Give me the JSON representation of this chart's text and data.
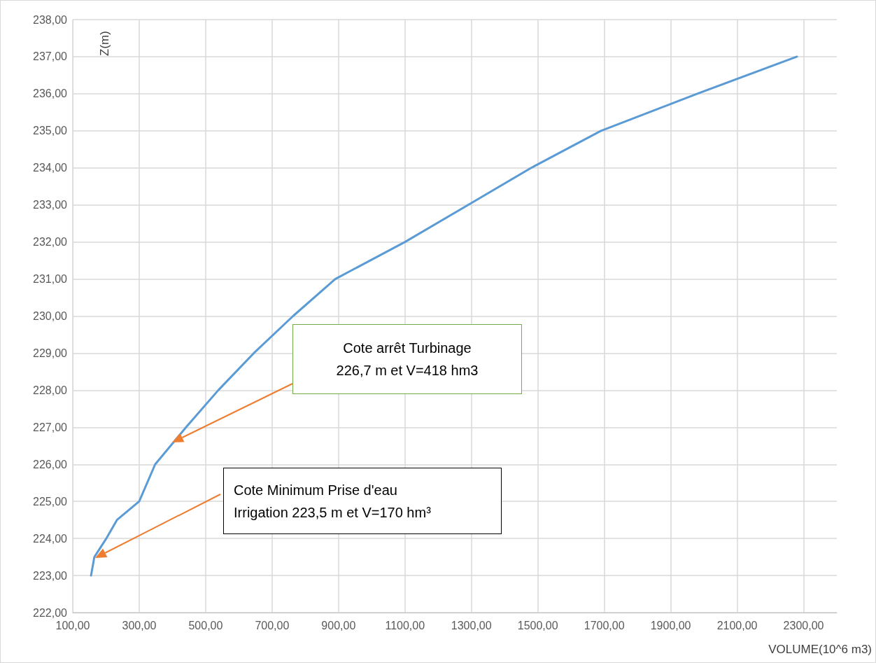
{
  "chart_data": {
    "type": "line",
    "xlabel": "VOLUME(10^6 m3)",
    "ylabel": "Z(m)",
    "x": [
      155,
      165,
      201,
      233,
      300,
      348,
      441,
      538,
      645,
      763,
      890,
      1100,
      1290,
      1480,
      1690,
      1980,
      2280
    ],
    "series": [
      {
        "color": "#5b9bd5",
        "values": [
          223.0,
          223.5,
          224.0,
          224.5,
          225.0,
          226.0,
          227.0,
          228.0,
          229.0,
          230.0,
          231.0,
          232.0,
          233.0,
          234.0,
          235.0,
          236.0,
          237.0
        ]
      }
    ],
    "xlim": [
      100,
      2400
    ],
    "xticks": [
      {
        "value": 100,
        "label": "100,00"
      },
      {
        "value": 300,
        "label": "300,00"
      },
      {
        "value": 500,
        "label": "500,00"
      },
      {
        "value": 700,
        "label": "700,00"
      },
      {
        "value": 900,
        "label": "900,00"
      },
      {
        "value": 1100,
        "label": "1100,00"
      },
      {
        "value": 1300,
        "label": "1300,00"
      },
      {
        "value": 1500,
        "label": "1500,00"
      },
      {
        "value": 1700,
        "label": "1700,00"
      },
      {
        "value": 1900,
        "label": "1900,00"
      },
      {
        "value": 2100,
        "label": "2100,00"
      },
      {
        "value": 2300,
        "label": "2300,00"
      }
    ],
    "ylim": [
      222,
      238
    ],
    "yticks": [
      {
        "value": 222,
        "label": "222,00"
      },
      {
        "value": 223,
        "label": "223,00"
      },
      {
        "value": 224,
        "label": "224,00"
      },
      {
        "value": 225,
        "label": "225,00"
      },
      {
        "value": 226,
        "label": "226,00"
      },
      {
        "value": 227,
        "label": "227,00"
      },
      {
        "value": 228,
        "label": "228,00"
      },
      {
        "value": 229,
        "label": "229,00"
      },
      {
        "value": 230,
        "label": "230,00"
      },
      {
        "value": 231,
        "label": "231,00"
      },
      {
        "value": 232,
        "label": "232,00"
      },
      {
        "value": 233,
        "label": "233,00"
      },
      {
        "value": 234,
        "label": "234,00"
      },
      {
        "value": 235,
        "label": "235,00"
      },
      {
        "value": 236,
        "label": "236,00"
      },
      {
        "value": 237,
        "label": "237,00"
      },
      {
        "value": 238,
        "label": "238,00"
      }
    ],
    "annotations": [
      "Cote arrêt Turbinage\n226,7 m  et V=418 hm3",
      "Cote Minimum Prise d'eau\nIrrigation 223,5 m et V=170 hm³"
    ],
    "grid": true,
    "marker": "none",
    "line_style": "solid"
  }
}
